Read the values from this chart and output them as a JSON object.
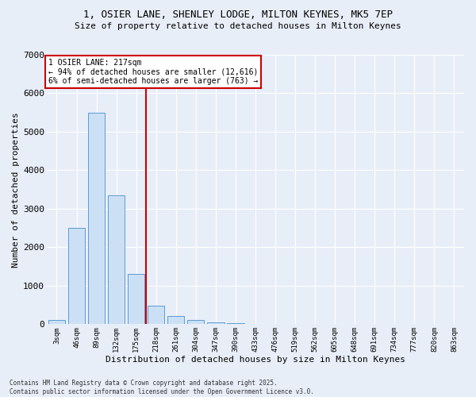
{
  "title_line1": "1, OSIER LANE, SHENLEY LODGE, MILTON KEYNES, MK5 7EP",
  "title_line2": "Size of property relative to detached houses in Milton Keynes",
  "xlabel": "Distribution of detached houses by size in Milton Keynes",
  "ylabel": "Number of detached properties",
  "categories": [
    "3sqm",
    "46sqm",
    "89sqm",
    "132sqm",
    "175sqm",
    "218sqm",
    "261sqm",
    "304sqm",
    "347sqm",
    "390sqm",
    "433sqm",
    "476sqm",
    "519sqm",
    "562sqm",
    "605sqm",
    "648sqm",
    "691sqm",
    "734sqm",
    "777sqm",
    "820sqm",
    "863sqm"
  ],
  "values": [
    100,
    2500,
    5500,
    3350,
    1300,
    480,
    210,
    100,
    55,
    30,
    0,
    0,
    0,
    0,
    0,
    0,
    0,
    0,
    0,
    0,
    0
  ],
  "bar_color": "#cce0f5",
  "bar_edge_color": "#5b9bd5",
  "annotation_text": "1 OSIER LANE: 217sqm\n← 94% of detached houses are smaller (12,616)\n6% of semi-detached houses are larger (763) →",
  "property_bar_index": 5,
  "ylim": [
    0,
    7000
  ],
  "yticks": [
    0,
    1000,
    2000,
    3000,
    4000,
    5000,
    6000,
    7000
  ],
  "background_color": "#e8eef8",
  "grid_color": "#ffffff",
  "vline_color": "#cc0000",
  "annotation_box_color": "#cc0000",
  "footer_line1": "Contains HM Land Registry data © Crown copyright and database right 2025.",
  "footer_line2": "Contains public sector information licensed under the Open Government Licence v3.0."
}
